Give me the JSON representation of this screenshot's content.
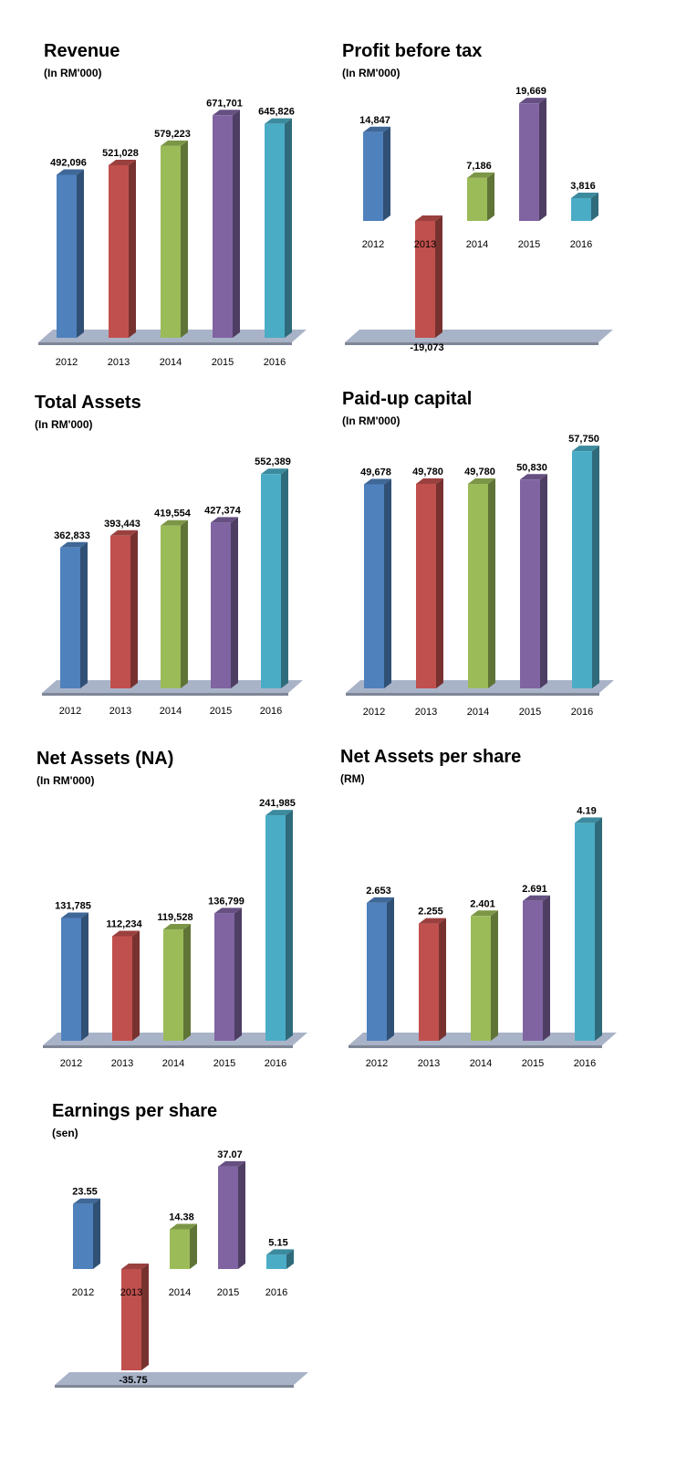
{
  "chart_data": [
    {
      "type": "bar",
      "title": "Revenue",
      "unit": "(In RM'000)",
      "categories": [
        "2012",
        "2013",
        "2014",
        "2015",
        "2016"
      ],
      "values": [
        492096,
        521028,
        579223,
        671701,
        645826
      ],
      "value_labels": [
        "492,096",
        "521,028",
        "579,223",
        "671,701",
        "645,826"
      ],
      "ylim": [
        0,
        700000
      ],
      "xlabel": "",
      "ylabel": "",
      "grid": false
    },
    {
      "type": "bar",
      "title": "Profit before tax",
      "unit": "(In RM'000)",
      "categories": [
        "2012",
        "2013",
        "2014",
        "2015",
        "2016"
      ],
      "values": [
        14847,
        -19073,
        7186,
        19669,
        3816
      ],
      "value_labels": [
        "14,847",
        "-19,073",
        "7,186",
        "19,669",
        "3,816"
      ],
      "ylim": [
        -19073,
        20000
      ],
      "xlabel": "",
      "ylabel": "",
      "grid": false
    },
    {
      "type": "bar",
      "title": "Total Assets",
      "unit": "(In RM'000)",
      "categories": [
        "2012",
        "2013",
        "2014",
        "2015",
        "2016"
      ],
      "values": [
        362833,
        393443,
        419554,
        427374,
        552389
      ],
      "value_labels": [
        "362,833",
        "393,443",
        "419,554",
        "427,374",
        "552,389"
      ],
      "ylim": [
        0,
        560000
      ],
      "xlabel": "",
      "ylabel": "",
      "grid": false
    },
    {
      "type": "bar",
      "title": "Paid-up capital",
      "unit": "(In RM'000)",
      "categories": [
        "2012",
        "2013",
        "2014",
        "2015",
        "2016"
      ],
      "values": [
        49678,
        49780,
        49780,
        50830,
        57750
      ],
      "value_labels": [
        "49,678",
        "49,780",
        "49,780",
        "50,830",
        "57,750"
      ],
      "ylim": [
        0,
        58000
      ],
      "xlabel": "",
      "ylabel": "",
      "grid": false
    },
    {
      "type": "bar",
      "title": "Net Assets (NA)",
      "unit": "(In RM'000)",
      "categories": [
        "2012",
        "2013",
        "2014",
        "2015",
        "2016"
      ],
      "values": [
        131785,
        112234,
        119528,
        136799,
        241985
      ],
      "value_labels": [
        "131,785",
        "112,234",
        "119,528",
        "136,799",
        "241,985"
      ],
      "ylim": [
        0,
        245000
      ],
      "xlabel": "",
      "ylabel": "",
      "grid": false
    },
    {
      "type": "bar",
      "title": "Net Assets per share",
      "unit": "(RM)",
      "categories": [
        "2012",
        "2013",
        "2014",
        "2015",
        "2016"
      ],
      "values": [
        2.653,
        2.255,
        2.401,
        2.691,
        4.19
      ],
      "value_labels": [
        "2.653",
        "2.255",
        "2.401",
        "2.691",
        "4.19"
      ],
      "ylim": [
        0,
        4.25
      ],
      "xlabel": "",
      "ylabel": "",
      "grid": false
    },
    {
      "type": "bar",
      "title": "Earnings per share",
      "unit": "(sen)",
      "categories": [
        "2012",
        "2013",
        "2014",
        "2015",
        "2016"
      ],
      "values": [
        23.55,
        -35.75,
        14.38,
        37.07,
        5.15
      ],
      "value_labels": [
        "23.55",
        "-35.75",
        "14.38",
        "37.07",
        "5.15"
      ],
      "ylim": [
        -35.75,
        38
      ],
      "xlabel": "",
      "ylabel": "",
      "grid": false
    }
  ],
  "colors": {
    "series": [
      "#4f81bd",
      "#c0504d",
      "#9bbb59",
      "#8064a2",
      "#4bacc6"
    ],
    "floor": "#a9b3c8"
  }
}
